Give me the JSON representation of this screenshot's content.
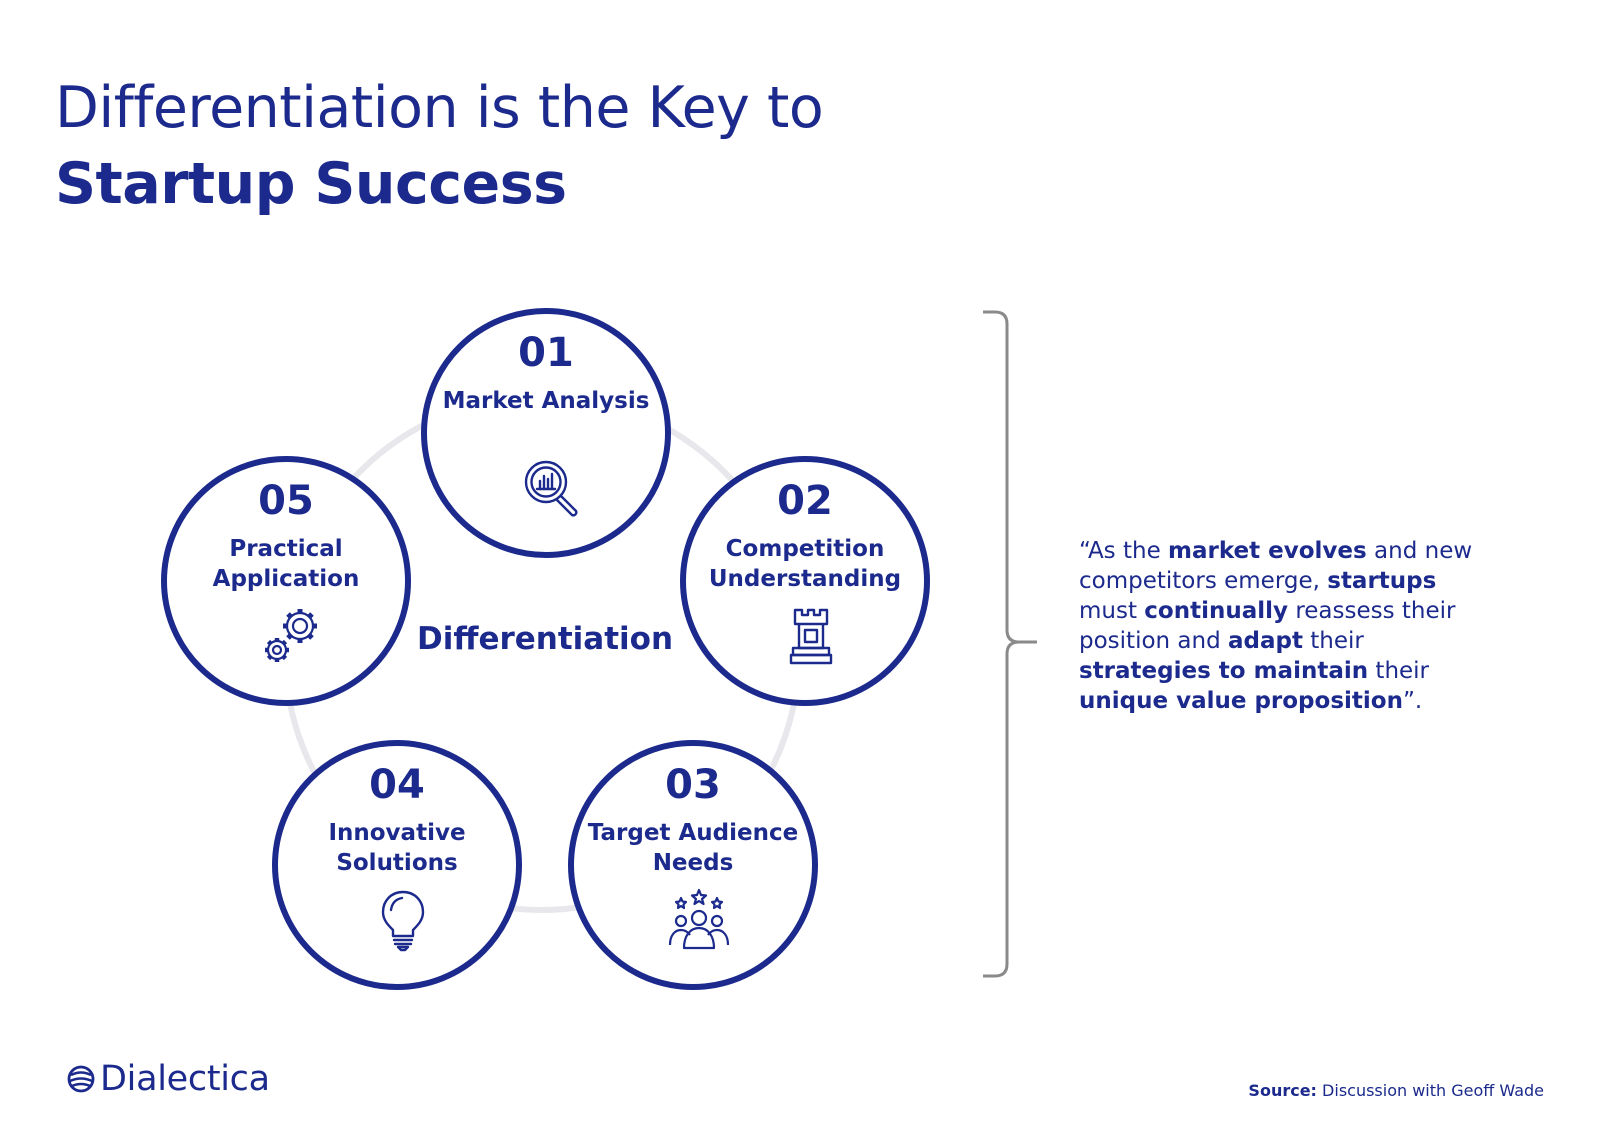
{
  "title": {
    "line1": "Differentiation is the Key to",
    "line2": "Startup Success"
  },
  "diagram": {
    "center_label": "Differentiation",
    "nodes": [
      {
        "number": "01",
        "label": "Market Analysis",
        "icon": "magnifier-chart-icon"
      },
      {
        "number": "02",
        "label": "Competition Understanding",
        "icon": "chess-rook-icon"
      },
      {
        "number": "03",
        "label": "Target Audience Needs",
        "icon": "audience-stars-icon"
      },
      {
        "number": "04",
        "label": "Innovative Solutions",
        "icon": "lightbulb-icon"
      },
      {
        "number": "05",
        "label": "Practical Application",
        "icon": "gears-icon"
      }
    ]
  },
  "quote": {
    "segments": [
      {
        "text": "“As the ",
        "bold": false
      },
      {
        "text": "market evolves",
        "bold": true
      },
      {
        "text": " and new competitors emerge, ",
        "bold": false
      },
      {
        "text": "startups",
        "bold": true
      },
      {
        "text": " must ",
        "bold": false
      },
      {
        "text": "continually",
        "bold": true
      },
      {
        "text": " reassess their position and ",
        "bold": false
      },
      {
        "text": "adapt",
        "bold": true
      },
      {
        "text": " their ",
        "bold": false
      },
      {
        "text": "strategies to maintain",
        "bold": true
      },
      {
        "text": " their ",
        "bold": false
      },
      {
        "text": "unique value proposition",
        "bold": true
      },
      {
        "text": "”.",
        "bold": false
      }
    ]
  },
  "footer": {
    "logo_text": "Dialectica",
    "source_label": "Source:",
    "source_text": "Discussion with Geoff Wade"
  },
  "colors": {
    "primary": "#1b2a8c",
    "ring": "#e7e7ec",
    "bracket": "#8a8a8a"
  }
}
